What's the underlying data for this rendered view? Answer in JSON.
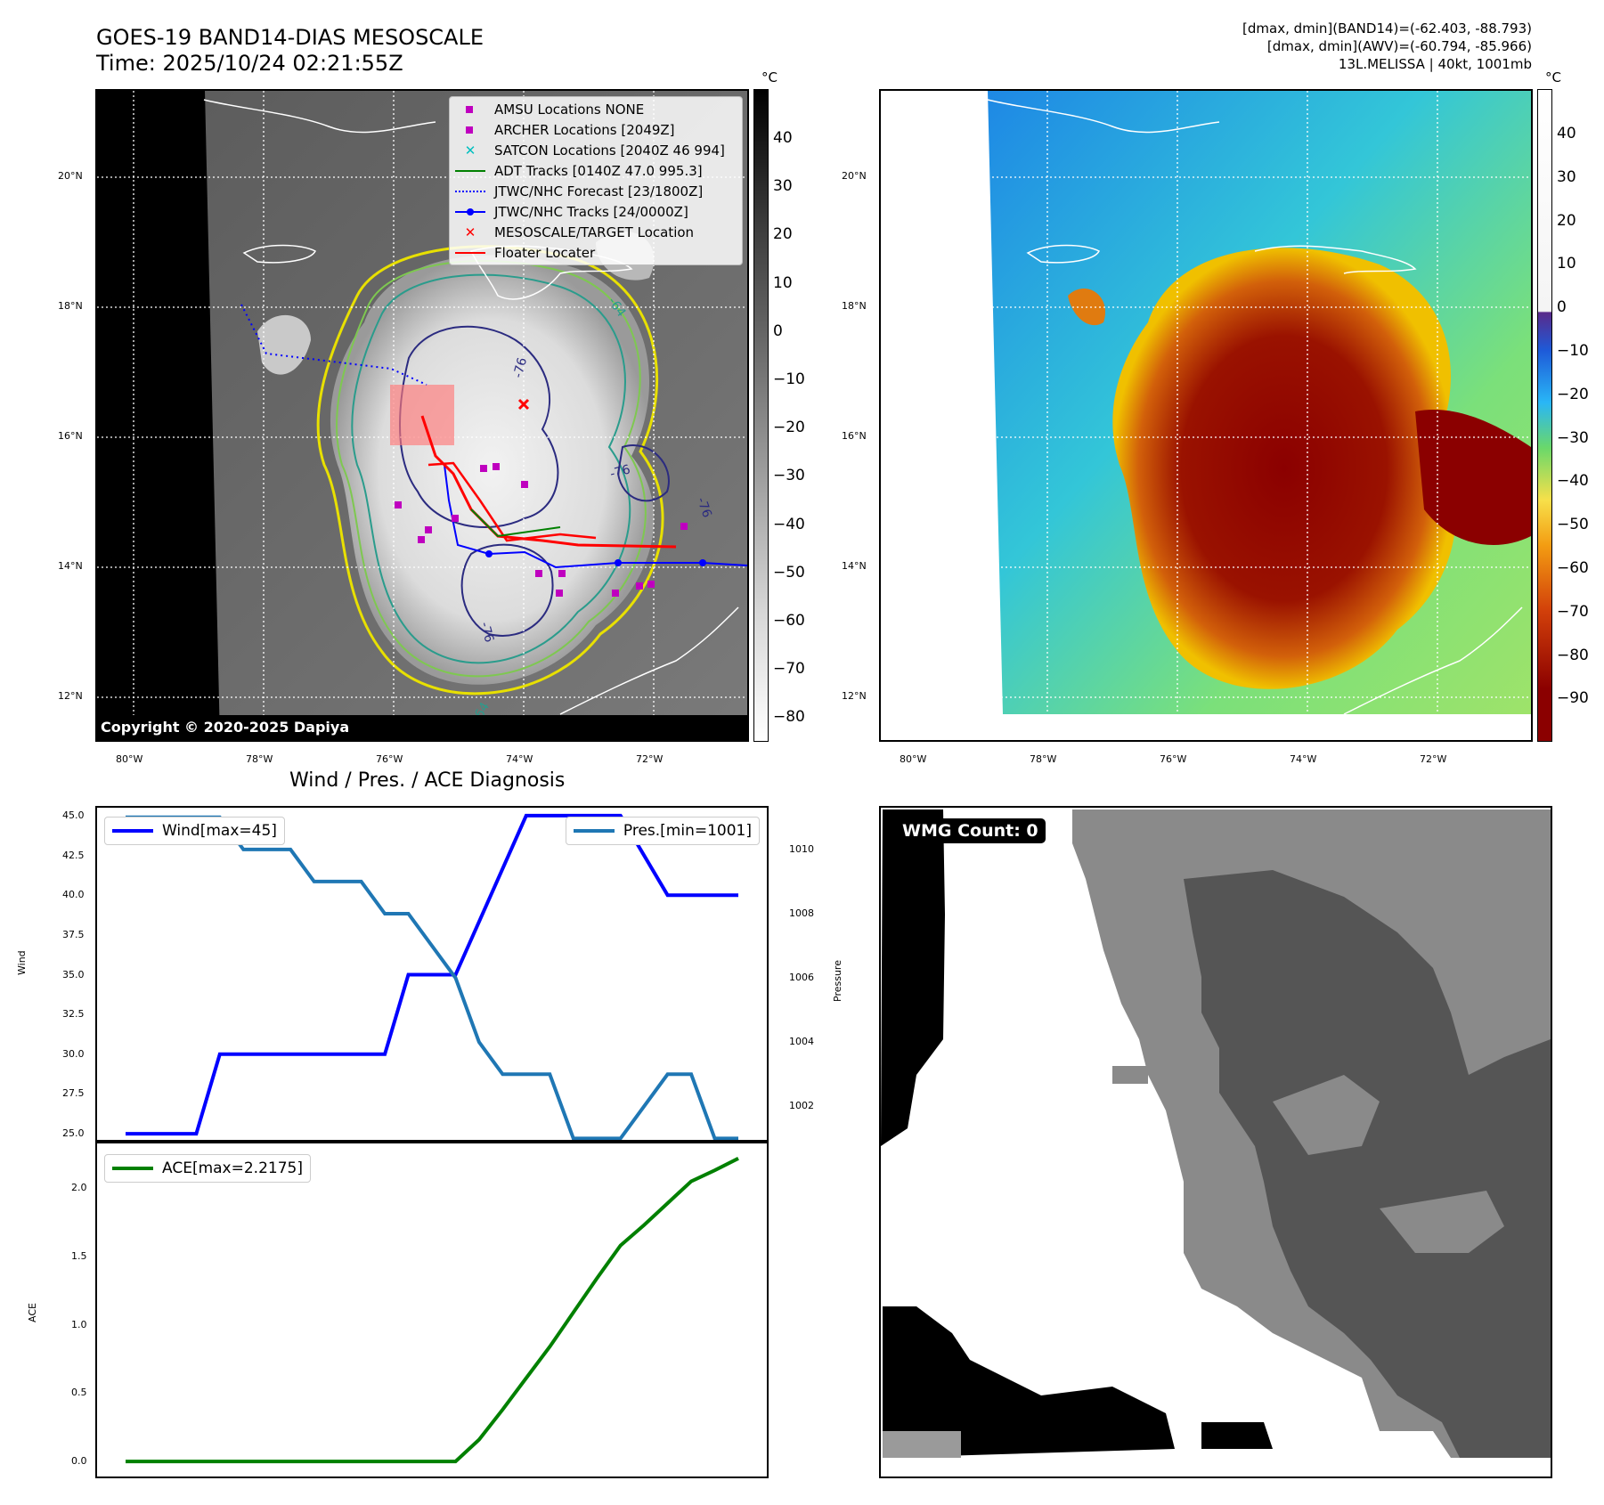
{
  "header": {
    "title_line1": "GOES-19 BAND14-DIAS MESOSCALE",
    "title_line2": "Time: 2025/10/24 02:21:55Z",
    "info_line1": "[dmax, dmin](BAND14)=(-62.403, -88.793)",
    "info_line2": "[dmax, dmin](AWV)=(-60.794, -85.966)",
    "info_line3": "13L.MELISSA | 40kt, 1001mb"
  },
  "map_axes": {
    "lon_labels": [
      "80°W",
      "78°W",
      "76°W",
      "74°W",
      "72°W"
    ],
    "lat_labels": [
      "20°N",
      "18°N",
      "16°N",
      "14°N",
      "12°N"
    ],
    "extent": {
      "lon": [
        -80.6,
        -70.6
      ],
      "lat": [
        11.4,
        21.3
      ]
    }
  },
  "ir_panel": {
    "colorbar_unit": "°C",
    "colorbar_ticks": [
      "40",
      "30",
      "20",
      "10",
      "0",
      "−10",
      "−20",
      "−30",
      "−40",
      "−50",
      "−60",
      "−70",
      "−80"
    ],
    "contour_labels": [
      "-64",
      "-76",
      "-76",
      "-76",
      "-76",
      "-64"
    ],
    "copyright": "Copyright © 2020-2025 Dapiya",
    "legend": [
      {
        "label": "AMSU Locations NONE",
        "color": "#bf00bf",
        "marker": "square"
      },
      {
        "label": "ARCHER Locations [2049Z]",
        "color": "#bf00bf",
        "marker": "square"
      },
      {
        "label": "SATCON Locations [2040Z 46 994]",
        "color": "#00bfbf",
        "marker": "x"
      },
      {
        "label": "ADT Tracks [0140Z 47.0 995.3]",
        "color": "#008000",
        "marker": "line"
      },
      {
        "label": "JTWC/NHC Forecast [23/1800Z]",
        "color": "#0000ff",
        "marker": "dotted"
      },
      {
        "label": "JTWC/NHC Tracks [24/0000Z]",
        "color": "#0000ff",
        "marker": "line-dot"
      },
      {
        "label": "MESOSCALE/TARGET Location",
        "color": "#ff0000",
        "marker": "x"
      },
      {
        "label": "Floater Locater",
        "color": "#ff0000",
        "marker": "line"
      }
    ]
  },
  "awv_panel": {
    "colorbar_unit": "°C",
    "colorbar_ticks": [
      "40",
      "30",
      "20",
      "10",
      "0",
      "−10",
      "−20",
      "−30",
      "−40",
      "−50",
      "−60",
      "−70",
      "−80",
      "−90"
    ]
  },
  "chart_data": [
    {
      "type": "line",
      "title": "Wind / Pres. / ACE Diagnosis",
      "ylabel": "Wind",
      "ylim": [
        24.5,
        45.5
      ],
      "yticks": [
        "45.0",
        "42.5",
        "40.0",
        "37.5",
        "35.0",
        "32.5",
        "30.0",
        "27.5",
        "25.0"
      ],
      "series": [
        {
          "name": "Wind[max=45]",
          "color": "#0000ff",
          "x": [
            0,
            3,
            4,
            11,
            12,
            14,
            17,
            21,
            23,
            26
          ],
          "values": [
            25,
            25,
            30,
            30,
            35,
            35,
            45,
            45,
            40,
            40
          ]
        }
      ],
      "secondary": {
        "ylabel": "Pressure",
        "ylim": [
          1000.9,
          1011.3
        ],
        "yticks": [
          "1010",
          "1008",
          "1006",
          "1004",
          "1002"
        ],
        "series": [
          {
            "name": "Pres.[min=1001]",
            "color": "#1f77b4",
            "x": [
              0,
              4,
              5,
              7,
              8,
              10,
              11,
              12,
              14,
              15,
              16,
              18,
              19,
              21,
              23,
              24,
              25,
              26
            ],
            "values": [
              1011,
              1011,
              1010,
              1010,
              1009,
              1009,
              1008,
              1008,
              1006,
              1004,
              1003,
              1003,
              1001,
              1001,
              1003,
              1003,
              1001,
              1001
            ]
          }
        ]
      }
    },
    {
      "type": "line",
      "ylabel": "ACE",
      "ylim": [
        -0.11,
        2.34
      ],
      "yticks": [
        "2.0",
        "1.5",
        "1.0",
        "0.5",
        "0.0"
      ],
      "series": [
        {
          "name": "ACE[max=2.2175]",
          "color": "#008000",
          "x": [
            0,
            14,
            15,
            16,
            17,
            18,
            19,
            20,
            21,
            22,
            23,
            24,
            25,
            26
          ],
          "values": [
            0,
            0,
            0.16,
            0.38,
            0.61,
            0.84,
            1.09,
            1.34,
            1.58,
            1.73,
            1.89,
            2.05,
            2.13,
            2.2175
          ]
        }
      ]
    }
  ],
  "wmg_panel": {
    "badge": "WMG Count: 0"
  }
}
